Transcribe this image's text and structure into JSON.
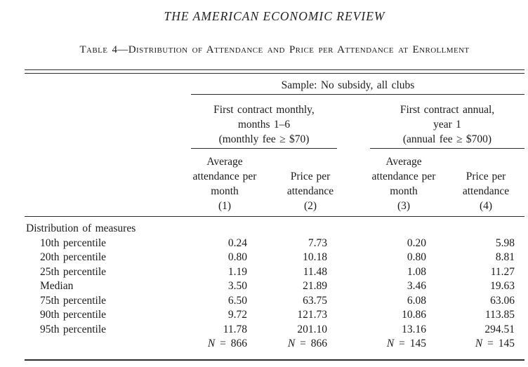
{
  "page": {
    "journal_header": "THE AMERICAN ECONOMIC REVIEW",
    "table_caption": "Table 4—Distribution of Attendance and Price per Attendance at Enrollment"
  },
  "table": {
    "sample_header": "Sample: No subsidy, all clubs",
    "groups": [
      {
        "line1": "First contract monthly,",
        "line2": "months 1–6",
        "line3": "(monthly fee ≥ $70)"
      },
      {
        "line1": "First contract annual,",
        "line2": "year 1",
        "line3": "(annual fee ≥ $700)"
      }
    ],
    "columns": [
      {
        "title": "Average attendance per month",
        "number": "(1)"
      },
      {
        "title": "Price per attendance",
        "number": "(2)"
      },
      {
        "title": "Average attendance per month",
        "number": "(3)"
      },
      {
        "title": "Price per attendance",
        "number": "(4)"
      }
    ],
    "section_label": "Distribution of measures",
    "rows": [
      {
        "label": "10th percentile",
        "values": [
          "0.24",
          "7.73",
          "0.20",
          "5.98"
        ]
      },
      {
        "label": "20th percentile",
        "values": [
          "0.80",
          "10.18",
          "0.80",
          "8.81"
        ]
      },
      {
        "label": "25th percentile",
        "values": [
          "1.19",
          "11.48",
          "1.08",
          "11.27"
        ]
      },
      {
        "label": "Median",
        "values": [
          "3.50",
          "21.89",
          "3.46",
          "19.63"
        ]
      },
      {
        "label": "75th percentile",
        "values": [
          "6.50",
          "63.75",
          "6.08",
          "63.06"
        ]
      },
      {
        "label": "90th percentile",
        "values": [
          "9.72",
          "121.73",
          "10.86",
          "113.85"
        ]
      },
      {
        "label": "95th percentile",
        "values": [
          "11.78",
          "201.10",
          "13.16",
          "294.51"
        ]
      }
    ],
    "n_row": {
      "n": "N",
      "eq": "=",
      "values": [
        "866",
        "866",
        "145",
        "145"
      ]
    }
  }
}
